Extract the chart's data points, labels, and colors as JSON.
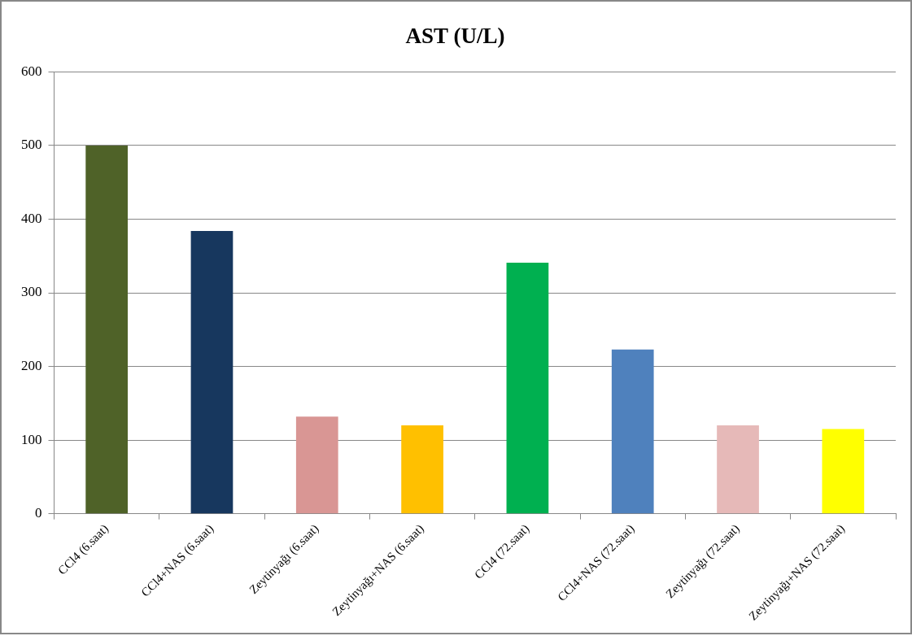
{
  "chart_data": {
    "type": "bar",
    "title": "AST (U/L)",
    "categories": [
      "CCl4 (6.saat)",
      "CCl4+NAS (6.saat)",
      "Zeytinyağı (6.saat)",
      "Zeytinyağı+NAS (6.saat)",
      "CCl4 (72.saat)",
      "CCl4+NAS (72.saat)",
      "Zeytinyağı (72.saat)",
      "Zeytinyağı+NAS (72.saat)"
    ],
    "values": [
      500,
      384,
      132,
      120,
      341,
      223,
      120,
      115
    ],
    "colors": [
      "#4f6228",
      "#17375e",
      "#d99694",
      "#ffc000",
      "#00b050",
      "#4f81bd",
      "#e6b9b8",
      "#ffff00"
    ],
    "ylim": [
      0,
      600
    ],
    "yticks": [
      0,
      100,
      200,
      300,
      400,
      500,
      600
    ],
    "grid": "y",
    "legend": false
  }
}
